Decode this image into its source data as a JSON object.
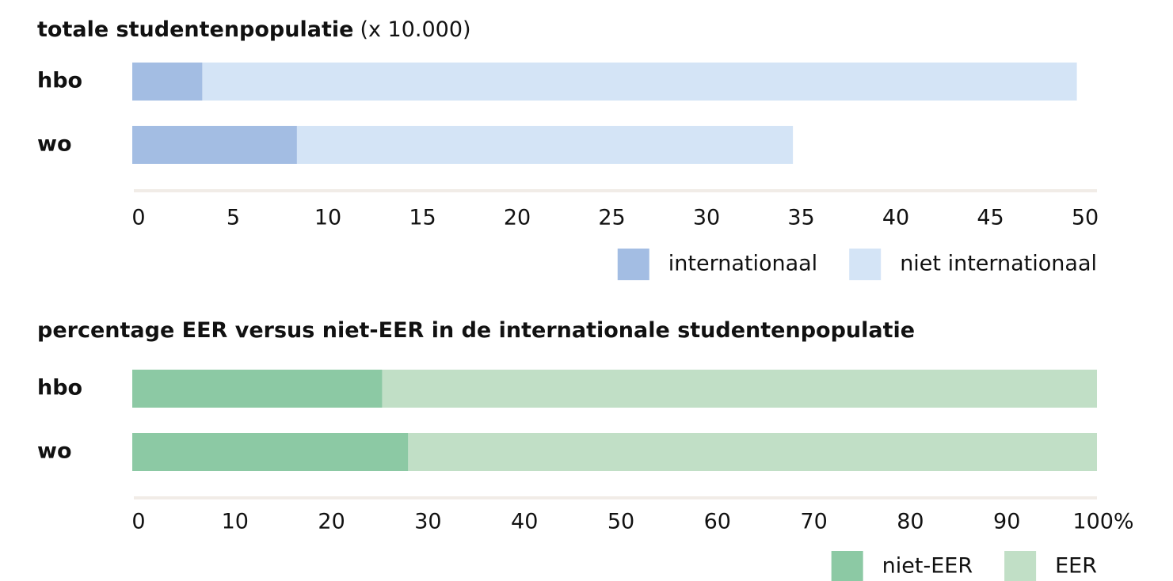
{
  "chart_data": [
    {
      "type": "stacked_barh",
      "title": "totale studentenpopulatie",
      "title_note": "(x 10.000)",
      "categories": [
        "hbo",
        "wo"
      ],
      "series": [
        {
          "name": "internationaal",
          "color": "#a3bde3",
          "values": [
            3.7,
            8.7
          ]
        },
        {
          "name": "niet internationaal",
          "color": "#d4e4f6",
          "values": [
            46.2,
            26.2
          ]
        }
      ],
      "xlim": [
        0,
        50
      ],
      "xticks": [
        0,
        5,
        10,
        15,
        20,
        25,
        30,
        35,
        40,
        45,
        50
      ]
    },
    {
      "type": "stacked_barh",
      "title": "percentage EER versus niet-EER in de internationale studentenpopulatie",
      "categories": [
        "hbo",
        "wo"
      ],
      "series": [
        {
          "name": "niet-EER",
          "color": "#8cc9a4",
          "values": [
            25.9,
            28.6
          ]
        },
        {
          "name": "EER",
          "color": "#c1dfc6",
          "values": [
            74.1,
            71.4
          ]
        }
      ],
      "xlim": [
        0,
        100
      ],
      "xticks": [
        0,
        10,
        20,
        30,
        40,
        50,
        60,
        70,
        80,
        90,
        {
          "value": 100,
          "label": "100%"
        }
      ]
    }
  ]
}
